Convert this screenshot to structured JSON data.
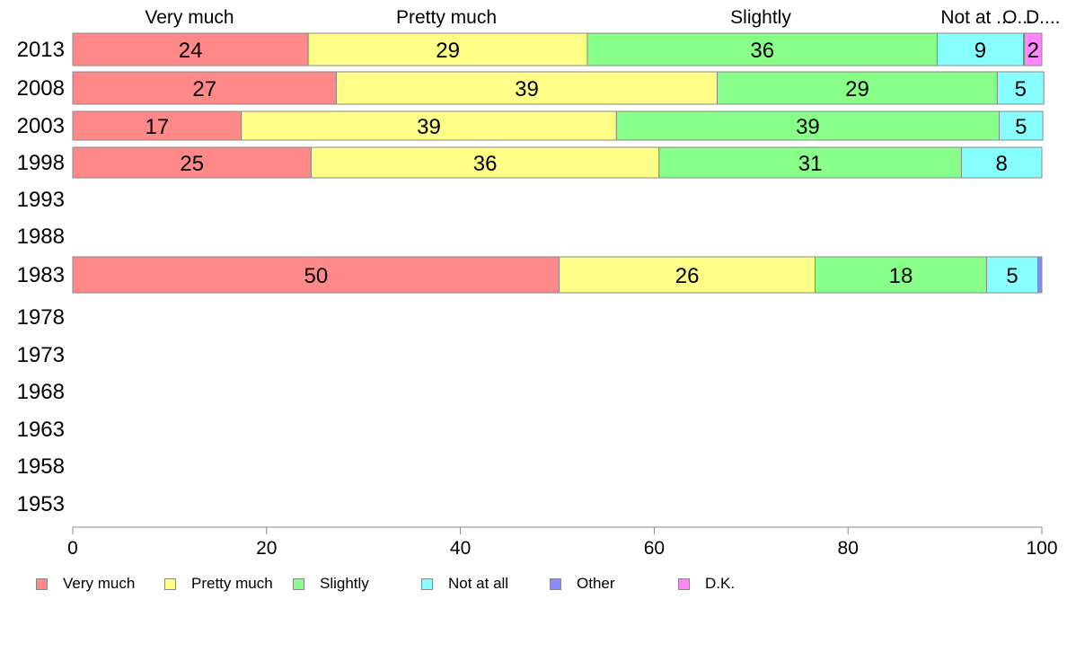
{
  "chart_data": {
    "type": "bar",
    "orientation": "horizontal",
    "stacked": true,
    "categories": [
      "2013",
      "2008",
      "2003",
      "1998",
      "1993",
      "1988",
      "1983",
      "1978",
      "1973",
      "1968",
      "1963",
      "1958",
      "1953"
    ],
    "xlim": [
      0,
      100
    ],
    "xticks": [
      "0",
      "20",
      "40",
      "60",
      "80",
      "100"
    ],
    "legend_position": "bottom",
    "top_labels": [
      "Very much",
      "Pretty much",
      "Slightly",
      "Not at ...",
      "O...",
      "D...."
    ],
    "series": [
      {
        "name": "Very much",
        "color": "#ff8888",
        "values": [
          24.3,
          27.2,
          17.4,
          24.6,
          null,
          null,
          50.2,
          null,
          null,
          null,
          null,
          null,
          null
        ],
        "labels": [
          "24",
          "27",
          "17",
          "25",
          "",
          "",
          "50",
          "",
          "",
          "",
          "",
          "",
          ""
        ]
      },
      {
        "name": "Pretty much",
        "color": "#ffff88",
        "values": [
          28.8,
          39.3,
          38.7,
          35.9,
          null,
          null,
          26.4,
          null,
          null,
          null,
          null,
          null,
          null
        ],
        "labels": [
          "29",
          "39",
          "39",
          "36",
          "",
          "",
          "26",
          "",
          "",
          "",
          "",
          "",
          ""
        ]
      },
      {
        "name": "Slightly",
        "color": "#88ff88",
        "values": [
          36.1,
          28.9,
          39.5,
          31.2,
          null,
          null,
          17.7,
          null,
          null,
          null,
          null,
          null,
          null
        ],
        "labels": [
          "36",
          "29",
          "39",
          "31",
          "",
          "",
          "18",
          "",
          "",
          "",
          "",
          "",
          ""
        ]
      },
      {
        "name": "Not at all",
        "color": "#88ffff",
        "values": [
          8.9,
          4.8,
          4.5,
          8.3,
          null,
          null,
          5.3,
          null,
          null,
          null,
          null,
          null,
          null
        ],
        "labels": [
          "9",
          "5",
          "5",
          "8",
          "",
          "",
          "5",
          "",
          "",
          "",
          "",
          "",
          ""
        ]
      },
      {
        "name": "Other",
        "color": "#8888ff",
        "values": [
          0.1,
          0,
          0,
          0,
          null,
          null,
          0.4,
          null,
          null,
          null,
          null,
          null,
          null
        ],
        "labels": [
          "",
          "",
          "",
          "",
          "",
          "",
          "",
          "",
          "",
          "",
          "",
          "",
          ""
        ]
      },
      {
        "name": "D.K.",
        "color": "#ff88ff",
        "values": [
          1.8,
          0,
          0,
          0,
          null,
          null,
          0,
          null,
          null,
          null,
          null,
          null,
          null
        ],
        "labels": [
          "2",
          "",
          "",
          "",
          "",
          "",
          "",
          "",
          "",
          "",
          "",
          "",
          ""
        ]
      }
    ]
  }
}
